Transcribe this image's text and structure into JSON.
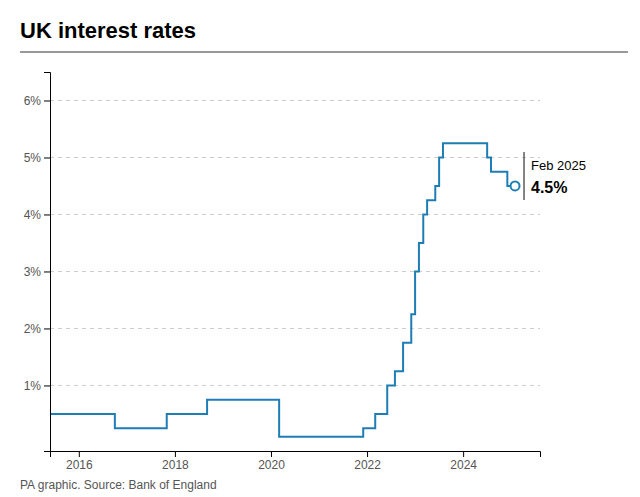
{
  "chart_data": {
    "type": "step",
    "title": "UK interest rates",
    "source": "PA graphic. Source: Bank of England",
    "annotations": [
      "Feb 2025",
      "4.5%"
    ],
    "x": [
      2015.42,
      2015.83,
      2016.0,
      2016.58,
      2016.75,
      2017.0,
      2017.75,
      2017.83,
      2018.0,
      2018.5,
      2018.67,
      2018.75,
      2019.75,
      2019.92,
      2020.0,
      2020.17,
      2020.25,
      2021.75,
      2021.92,
      2022.0,
      2022.17,
      2022.25,
      2022.42,
      2022.5,
      2022.58,
      2022.75,
      2022.92,
      2023.0,
      2023.08,
      2023.17,
      2023.25,
      2023.42,
      2023.5,
      2023.58,
      2023.67,
      2023.75,
      2023.83,
      2024.0,
      2024.08,
      2024.42,
      2024.5,
      2024.58,
      2024.75,
      2024.92,
      2025.08
    ],
    "values": [
      0.5,
      0.5,
      0.5,
      0.5,
      0.25,
      0.25,
      0.25,
      0.5,
      0.5,
      0.5,
      0.75,
      0.75,
      0.75,
      0.75,
      0.75,
      0.1,
      0.1,
      0.1,
      0.25,
      0.25,
      0.5,
      0.5,
      1.0,
      1.0,
      1.25,
      1.75,
      2.25,
      3.0,
      3.5,
      4.0,
      4.25,
      4.5,
      5.0,
      5.25,
      5.25,
      5.25,
      5.25,
      5.25,
      5.25,
      5.25,
      5.0,
      4.75,
      4.75,
      4.5,
      4.5
    ],
    "color": "#1e7db5",
    "xlim": [
      2015.4,
      2025.6
    ],
    "xticks": [
      2016,
      2018,
      2020,
      2022,
      2024
    ],
    "ylim": [
      -0.15,
      6.5
    ],
    "yticks": [
      {
        "value": 1,
        "label": "1%"
      },
      {
        "value": 2,
        "label": "2%"
      },
      {
        "value": 3,
        "label": "3%"
      },
      {
        "value": 4,
        "label": "4%"
      },
      {
        "value": 5,
        "label": "5%"
      },
      {
        "value": 6,
        "label": "6%"
      }
    ],
    "grid": true
  }
}
